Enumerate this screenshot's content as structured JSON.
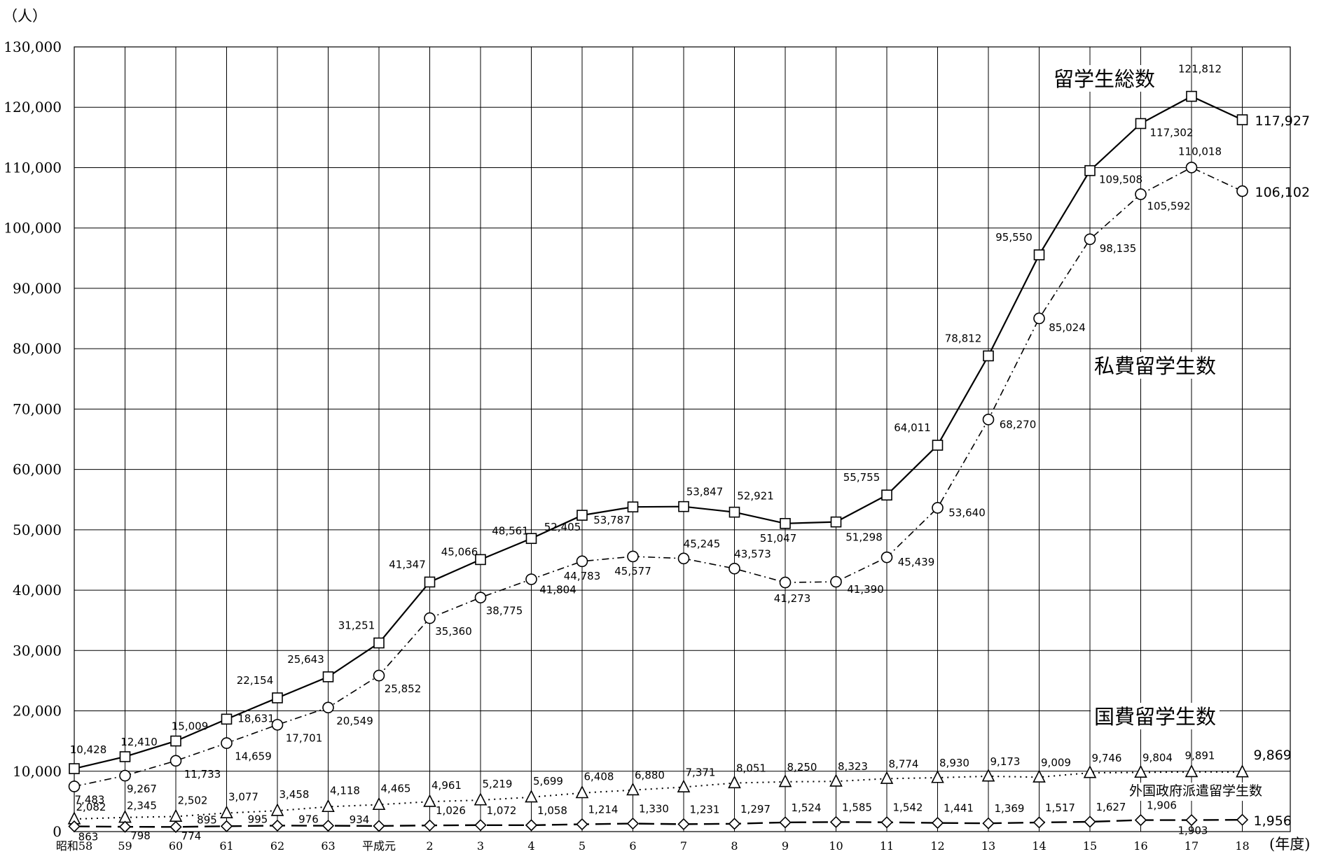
{
  "chart_data": {
    "type": "line",
    "y_unit": "（人）",
    "x_unit": "(年度)",
    "ylim": [
      0,
      130000
    ],
    "yticks": [
      "0",
      "10,000",
      "20,000",
      "30,000",
      "40,000",
      "50,000",
      "60,000",
      "70,000",
      "80,000",
      "90,000",
      "100,000",
      "110,000",
      "120,000",
      "130,000"
    ],
    "categories": [
      "昭和58",
      "59",
      "60",
      "61",
      "62",
      "63",
      "平成元",
      "2",
      "3",
      "4",
      "5",
      "6",
      "7",
      "8",
      "9",
      "10",
      "11",
      "12",
      "13",
      "14",
      "15",
      "16",
      "17",
      "18"
    ],
    "grid": true,
    "series": [
      {
        "name": "留学生総数",
        "marker": "square",
        "line": "solid",
        "values": [
          10428,
          12410,
          15009,
          18631,
          22154,
          25643,
          31251,
          41347,
          45066,
          48561,
          52405,
          53787,
          53847,
          52921,
          51047,
          51298,
          55755,
          64011,
          78812,
          95550,
          109508,
          117302,
          121812,
          117927
        ],
        "labels": [
          "10,428",
          "12,410",
          "15,009",
          "18,631",
          "22,154",
          "25,643",
          "31,251",
          "41,347",
          "45,066",
          "48,561",
          "52,405",
          "53,787",
          "53,847",
          "52,921",
          "51,047",
          "51,298",
          "55,755",
          "64,011",
          "78,812",
          "95,550",
          "109,508",
          "117,302",
          "121,812",
          "117,927"
        ]
      },
      {
        "name": "私費留学生数",
        "marker": "circle",
        "line": "dashdot",
        "values": [
          7483,
          9267,
          11733,
          14659,
          17701,
          20549,
          25852,
          35360,
          38775,
          41804,
          44783,
          45577,
          45245,
          43573,
          41273,
          41390,
          45439,
          53640,
          68270,
          85024,
          98135,
          105592,
          110018,
          106102
        ],
        "labels": [
          "7,483",
          "9,267",
          "11,733",
          "14,659",
          "17,701",
          "20,549",
          "25,852",
          "35,360",
          "38,775",
          "41,804",
          "44,783",
          "45,577",
          "45,245",
          "43,573",
          "41,273",
          "41,390",
          "45,439",
          "53,640",
          "68,270",
          "85,024",
          "98,135",
          "105,592",
          "110,018",
          "106,102"
        ]
      },
      {
        "name": "国費留学生数",
        "marker": "triangle",
        "line": "dotted",
        "values": [
          2082,
          2345,
          2502,
          3077,
          3458,
          4118,
          4465,
          4961,
          5219,
          5699,
          6408,
          6880,
          7371,
          8051,
          8250,
          8323,
          8774,
          8930,
          9173,
          9009,
          9746,
          9804,
          9891,
          9869
        ],
        "labels": [
          "2,082",
          "2,345",
          "2,502",
          "3,077",
          "3,458",
          "4,118",
          "4,465",
          "4,961",
          "5,219",
          "5,699",
          "6,408",
          "6,880",
          "7,371",
          "8,051",
          "8,250",
          "8,323",
          "8,774",
          "8,930",
          "9,173",
          "9,009",
          "9,746",
          "9,804",
          "9,891",
          "9,869"
        ]
      },
      {
        "name": "外国政府派遣留学生数",
        "marker": "diamond",
        "line": "longdash",
        "values": [
          863,
          798,
          774,
          895,
          995,
          976,
          934,
          1026,
          1072,
          1058,
          1214,
          1330,
          1231,
          1297,
          1524,
          1585,
          1542,
          1441,
          1369,
          1517,
          1627,
          1906,
          1903,
          1956
        ],
        "labels": [
          "863",
          "798",
          "774",
          "895",
          "995",
          "976",
          "934",
          "1,026",
          "1,072",
          "1,058",
          "1,214",
          "1,330",
          "1,231",
          "1,297",
          "1,524",
          "1,585",
          "1,542",
          "1,441",
          "1,369",
          "1,517",
          "1,627",
          "1,906",
          "1,903",
          "1,956"
        ]
      }
    ]
  }
}
